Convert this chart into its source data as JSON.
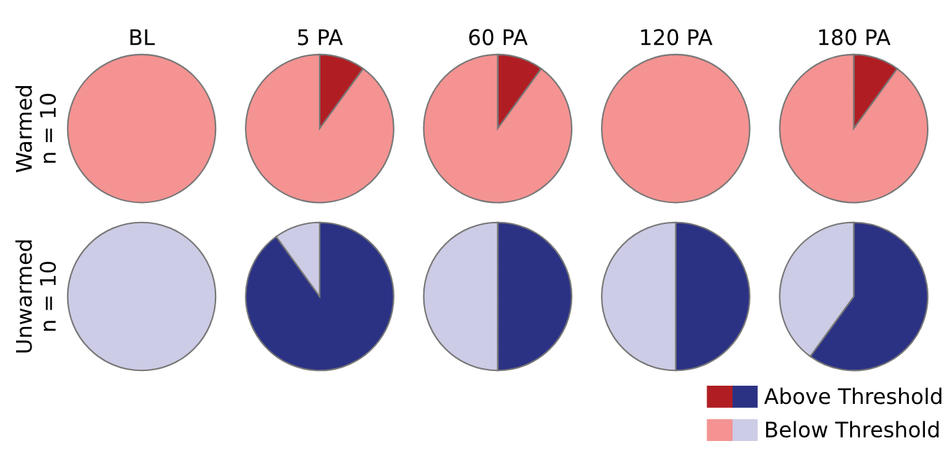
{
  "chart_data": [
    {
      "type": "pie",
      "title": "BL",
      "ylabel": "Warmed\nn = 10",
      "categories": [
        null,
        null
      ],
      "values": [
        0,
        100
      ],
      "colors": [
        "#b01e23",
        "#f49392"
      ]
    },
    {
      "type": "pie",
      "title": "5 PA",
      "categories": [
        null,
        null
      ],
      "values": [
        10,
        90
      ],
      "colors": [
        "#b01e23",
        "#f49392"
      ]
    },
    {
      "type": "pie",
      "title": "60 PA",
      "categories": [
        null,
        null
      ],
      "values": [
        10,
        90
      ],
      "colors": [
        "#b01e23",
        "#f49392"
      ]
    },
    {
      "type": "pie",
      "title": "120 PA",
      "categories": [
        null,
        null
      ],
      "values": [
        0,
        100
      ],
      "colors": [
        "#b01e23",
        "#f49392"
      ]
    },
    {
      "type": "pie",
      "title": "180 PA",
      "categories": [
        null,
        null
      ],
      "values": [
        10,
        90
      ],
      "colors": [
        "#b01e23",
        "#f49392"
      ]
    },
    {
      "type": "pie",
      "ylabel": "Unwarmed\nn = 10",
      "categories": [
        null,
        null
      ],
      "values": [
        0,
        100
      ],
      "colors": [
        "#2b3284",
        "#cccce6"
      ]
    },
    {
      "type": "pie",
      "categories": [
        null,
        null
      ],
      "values": [
        90,
        10
      ],
      "colors": [
        "#2b3284",
        "#cccce6"
      ]
    },
    {
      "type": "pie",
      "categories": [
        null,
        null
      ],
      "values": [
        50,
        50
      ],
      "colors": [
        "#2b3284",
        "#cccce6"
      ]
    },
    {
      "type": "pie",
      "categories": [
        null,
        null
      ],
      "values": [
        50,
        50
      ],
      "colors": [
        "#2b3284",
        "#cccce6"
      ]
    },
    {
      "type": "pie",
      "categories": [
        "Above Threshold",
        "Below Threshold"
      ],
      "values": [
        60,
        40
      ],
      "colors": [
        "#2b3284",
        "#cccce6"
      ],
      "legend": "bottom"
    }
  ]
}
